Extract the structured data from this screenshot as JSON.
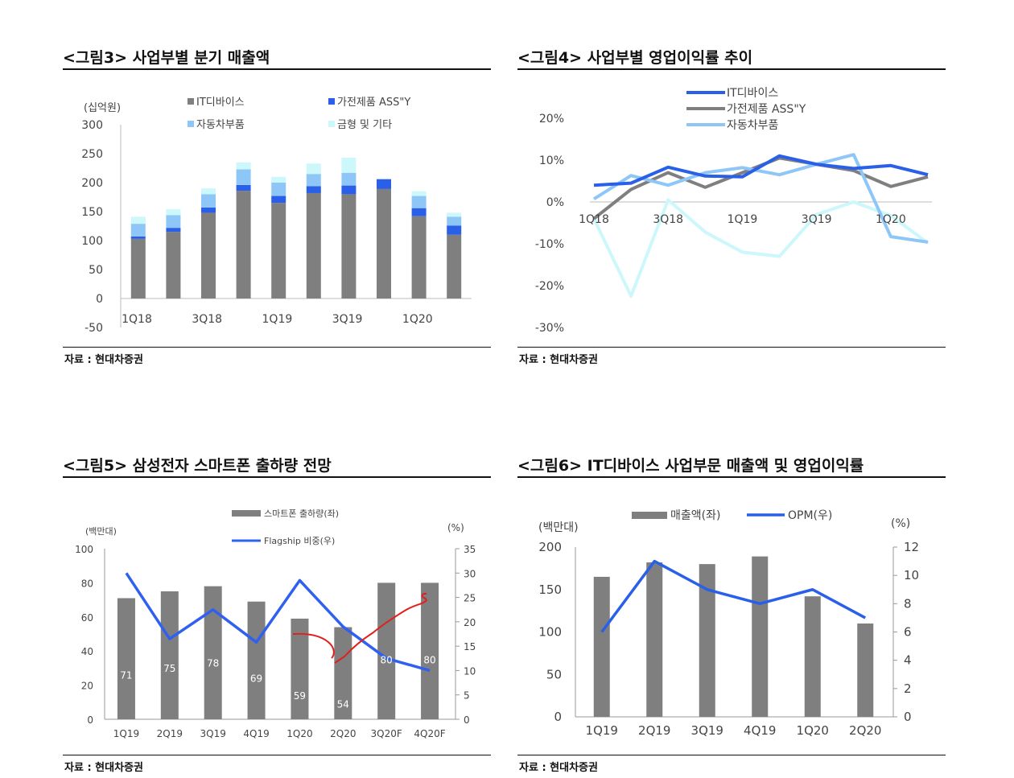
{
  "source_label": "자료 : 현대차증권",
  "colors": {
    "gray": "#7f7f7f",
    "blue": "#2a5fe8",
    "light_blue": "#8ec7f7",
    "cyan": "#ccf7fb",
    "red": "#e0201c"
  },
  "chart_data": [
    {
      "id": "fig3",
      "type": "bar",
      "stacked": true,
      "title": "<그림3> 사업부별 분기 매출액",
      "ylabel": "(십억원)",
      "ylim": [
        -50,
        300
      ],
      "yticks": [
        -50,
        0,
        50,
        100,
        150,
        200,
        250,
        300
      ],
      "x_labels": [
        "1Q18",
        "3Q18",
        "1Q19",
        "3Q19",
        "1Q20"
      ],
      "categories": [
        "1Q18",
        "2Q18",
        "3Q18",
        "4Q18",
        "1Q19",
        "2Q19",
        "3Q19",
        "4Q19",
        "1Q20",
        "2Q20"
      ],
      "series": [
        {
          "name": "IT디바이스",
          "color": "#7f7f7f",
          "values": [
            103,
            115,
            148,
            186,
            165,
            182,
            180,
            189,
            142,
            110
          ]
        },
        {
          "name": "가전제품 ASS\"Y",
          "color": "#2a5fe8",
          "values": [
            4,
            7,
            9,
            10,
            12,
            12,
            15,
            17,
            14,
            16
          ]
        },
        {
          "name": "자동차부품",
          "color": "#8ec7f7",
          "values": [
            22,
            22,
            23,
            27,
            23,
            21,
            22,
            0,
            21,
            15
          ]
        },
        {
          "name": "금형 및 기타",
          "color": "#ccf7fb",
          "values": [
            12,
            10,
            10,
            12,
            10,
            18,
            26,
            0,
            8,
            7
          ]
        }
      ]
    },
    {
      "id": "fig4",
      "type": "line",
      "title": "<그림4> 사업부별 영업이익률 추이",
      "ylabel": "",
      "ylim": [
        -30,
        20
      ],
      "yticks": [
        -30,
        -20,
        -10,
        0,
        10,
        20
      ],
      "x_labels": [
        "1Q18",
        "3Q18",
        "1Q19",
        "3Q19",
        "1Q20"
      ],
      "categories": [
        "1Q18",
        "2Q18",
        "3Q18",
        "4Q18",
        "1Q19",
        "2Q19",
        "3Q19",
        "4Q19",
        "1Q20",
        "2Q20"
      ],
      "series": [
        {
          "name": "IT디바이스",
          "color": "#2a5fe8",
          "values": [
            4,
            4.5,
            8.3,
            6.2,
            6,
            11,
            9,
            8,
            8.7,
            6.5
          ]
        },
        {
          "name": "가전제품 ASS\"Y",
          "color": "#7f7f7f",
          "values": [
            -4,
            3,
            7,
            3.5,
            7,
            10.5,
            9,
            7.5,
            3.7,
            6
          ]
        },
        {
          "name": "자동차부품",
          "color": "#8ec7f7",
          "values": [
            0.7,
            6.3,
            4,
            7,
            8.2,
            6.5,
            9,
            11.3,
            -8.3,
            -9.6
          ]
        },
        {
          "name": "금형 및 기타",
          "color": "#ccf7fb",
          "values": [
            -4,
            -22.5,
            0.5,
            -7.2,
            -12,
            -13,
            -3,
            0,
            -3.3,
            -9.8
          ]
        }
      ],
      "legend": [
        "IT디바이스",
        "가전제품 ASS\"Y",
        "자동차부품"
      ]
    },
    {
      "id": "fig5",
      "type": "bar",
      "title": "<그림5> 삼성전자 스마트폰 출하량 전망",
      "ylabel_left": "(백만대)",
      "ylabel_right": "(%)",
      "ylim_left": [
        0,
        100
      ],
      "yticks_left": [
        0,
        20,
        40,
        60,
        80,
        100
      ],
      "ylim_right": [
        0,
        35
      ],
      "yticks_right": [
        0,
        5,
        10,
        15,
        20,
        25,
        30,
        35
      ],
      "categories": [
        "1Q19",
        "2Q19",
        "3Q19",
        "4Q19",
        "1Q20",
        "2Q20",
        "3Q20F",
        "4Q20F"
      ],
      "bar_series": {
        "name": "스마트폰 출하량(좌)",
        "color": "#7f7f7f",
        "values": [
          71,
          75,
          78,
          69,
          59,
          54,
          80,
          80
        ]
      },
      "line_series": {
        "name": "Flagship 비중(우)",
        "color": "#3060f0",
        "values": [
          30,
          16.5,
          22.5,
          15.8,
          28.5,
          19,
          12.5,
          10
        ]
      }
    },
    {
      "id": "fig6",
      "type": "bar",
      "title": "<그림6> IT디바이스 사업부문 매출액 및 영업이익률",
      "ylabel_left": "(백만대)",
      "ylabel_right": "(%)",
      "ylim_left": [
        0,
        200
      ],
      "yticks_left": [
        0,
        50,
        100,
        150,
        200
      ],
      "ylim_right": [
        0,
        12
      ],
      "yticks_right": [
        0,
        2,
        4,
        6,
        8,
        10,
        12
      ],
      "categories": [
        "1Q19",
        "2Q19",
        "3Q19",
        "4Q19",
        "1Q20",
        "2Q20"
      ],
      "bar_series": {
        "name": "매출액(좌)",
        "color": "#7f7f7f",
        "values": [
          165,
          182,
          180,
          189,
          142,
          110
        ]
      },
      "line_series": {
        "name": "OPM(우)",
        "color": "#2a5fe8",
        "values": [
          6,
          11,
          9,
          8,
          9,
          7
        ]
      }
    }
  ]
}
